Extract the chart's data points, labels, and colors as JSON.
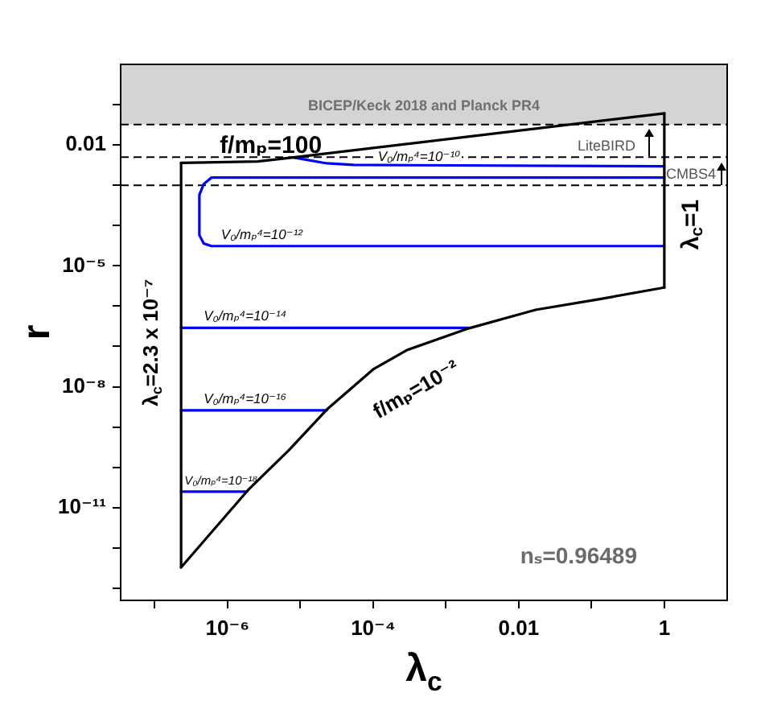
{
  "chart_data": {
    "type": "line",
    "xlabel": "λ$_{c}$",
    "ylabel": "r",
    "log": "xy",
    "xlim": [
      3.4e-08,
      7.3
    ],
    "ylim": [
      5e-14,
      1
    ],
    "xticks": [
      {
        "value": 1e-07,
        "label": null
      },
      {
        "value": 1e-06,
        "label": "10⁻⁶"
      },
      {
        "value": 1e-05,
        "label": null
      },
      {
        "value": 0.0001,
        "label": "10⁻⁴"
      },
      {
        "value": 0.001,
        "label": null
      },
      0.01,
      {
        "value": 0.1,
        "label": null
      },
      1
    ],
    "yticks": [
      {
        "value": 1e-13,
        "label": null
      },
      {
        "value": 1e-12,
        "label": null
      },
      {
        "value": 1e-11,
        "label": "10⁻¹¹"
      },
      {
        "value": 1e-10,
        "label": null
      },
      {
        "value": 1e-09,
        "label": null
      },
      {
        "value": 1e-08,
        "label": "10⁻⁸"
      },
      {
        "value": 1e-07,
        "label": null
      },
      {
        "value": 1e-06,
        "label": null
      },
      {
        "value": 1e-05,
        "label": "10⁻⁵"
      },
      {
        "value": 0.0001,
        "label": null
      },
      {
        "value": 0.001,
        "label": null
      },
      0.01,
      {
        "value": 0.1,
        "label": null
      }
    ],
    "series": [
      {
        "name": "f/mₚ=100",
        "color": "#000000",
        "x": [
          2.3e-07,
          2.6e-06,
          8e-06,
          1
        ],
        "values": [
          0.0036,
          0.0039,
          0.0049,
          0.061
        ]
      },
      {
        "name": "λ$_{c}$=1",
        "color": "#000000",
        "x": [
          1,
          1
        ],
        "values": [
          2.9e-06,
          0.061
        ]
      },
      {
        "name": "f/mₚ=10⁻²",
        "color": "#000000",
        "x": [
          2.3e-07,
          1.9e-06,
          7e-06,
          2.3e-05,
          0.0001,
          0.00029,
          0.0019,
          0.017,
          0.13,
          1
        ],
        "values": [
          3.3e-13,
          2.7e-11,
          2.7e-10,
          2.7e-09,
          2.7e-08,
          8.1e-08,
          2.7e-07,
          8.1e-07,
          1.5e-06,
          2.9e-06
        ]
      },
      {
        "name": "λ$_{c}$=2.3 x 10⁻⁷",
        "color": "#000000",
        "x": [
          2.3e-07,
          2.3e-07
        ],
        "values": [
          3.3e-13,
          0.0036
        ]
      },
      {
        "name": "V₀/mₚ⁴=10⁻¹⁰",
        "color": "#0000ff",
        "x": [
          8e-06,
          2.3e-05,
          5.4e-05,
          1
        ],
        "values": [
          0.0049,
          0.0035,
          0.0032,
          0.00295
        ]
      },
      {
        "name": "V₀/mₚ⁴=10⁻¹²",
        "color": "#0000ff",
        "x": [
          1,
          6e-07,
          4.7e-07,
          4.1e-07,
          4.1e-07,
          4.7e-07,
          6e-07,
          1
        ],
        "values": [
          0.00155,
          0.00155,
          0.00107,
          0.00058,
          5.8e-05,
          3.6e-05,
          3.1e-05,
          3.1e-05
        ]
      },
      {
        "name": "V₀/mₚ⁴=10⁻¹⁴",
        "color": "#0000ff",
        "x": [
          2.3e-07,
          0.0021
        ],
        "values": [
          2.9e-07,
          2.9e-07
        ]
      },
      {
        "name": "V₀/mₚ⁴=10⁻¹⁶",
        "color": "#0000ff",
        "x": [
          2.3e-07,
          2.3e-05
        ],
        "values": [
          2.6e-09,
          2.6e-09
        ]
      },
      {
        "name": "V₀/mₚ⁴=10⁻¹⁸",
        "color": "#0000ff",
        "x": [
          2.3e-07,
          1.85e-06
        ],
        "values": [
          2.5e-11,
          2.5e-11
        ]
      }
    ],
    "bands": [
      {
        "axis": "y",
        "from": 0.032,
        "to": 1,
        "label": "BICEP/Keck 2018 and Planck PR4",
        "color": "#d4d4d4"
      }
    ],
    "ref_lines": [
      {
        "axis": "y",
        "value": 0.032,
        "line_style": "dashed"
      },
      {
        "axis": "y",
        "value": 0.005,
        "label": "LiteBIRD",
        "line_style": "dashed"
      },
      {
        "axis": "y",
        "value": 0.001,
        "label": "CMBS4",
        "line_style": "dashed"
      }
    ],
    "annotations": [
      "nₛ=0.96489"
    ]
  }
}
